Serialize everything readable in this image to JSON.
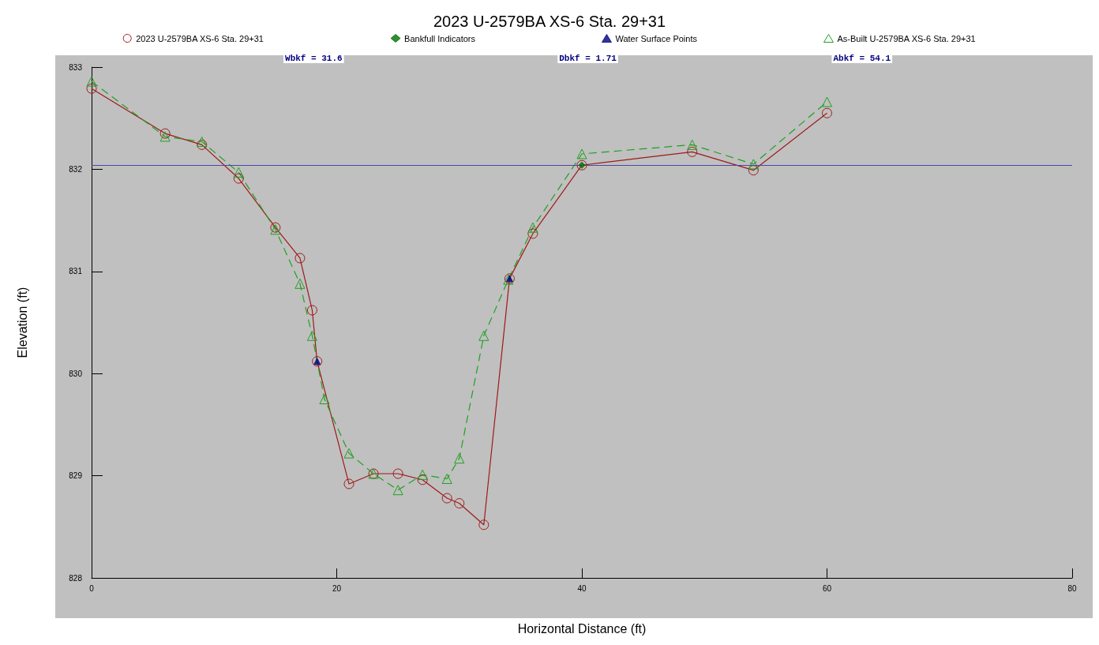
{
  "chart_data": {
    "type": "line",
    "title": "2023 U-2579BA XS-6 Sta. 29+31",
    "xlabel": "Horizontal Distance (ft)",
    "ylabel": "Elevation (ft)",
    "xlim": [
      0,
      80
    ],
    "xticks": [
      0,
      20,
      40,
      60,
      80
    ],
    "ylim": [
      828,
      833
    ],
    "yticks": [
      828,
      829,
      830,
      831,
      832,
      833
    ],
    "grid": false,
    "legend": "top",
    "annotations": [
      "Wbkf = 31.6",
      "Dbkf = 1.71",
      "Abkf = 54.1"
    ],
    "ref_lines": [
      {
        "axis": "y",
        "value": 832.04,
        "color": "#4848a8"
      }
    ],
    "series": [
      {
        "name": "2023 U-2579BA XS-6 Sta. 29+31",
        "color": "#a01818",
        "marker": "circle",
        "line_style": "solid",
        "x": [
          0,
          6,
          9,
          12,
          15,
          17,
          18,
          18.4,
          21,
          23,
          25,
          27,
          29,
          30,
          32,
          34.1,
          36,
          40,
          49,
          54,
          60
        ],
        "values": [
          832.79,
          832.35,
          832.24,
          831.91,
          831.43,
          831.13,
          830.62,
          830.12,
          828.92,
          829.02,
          829.02,
          828.96,
          828.78,
          828.73,
          828.52,
          830.93,
          831.37,
          832.04,
          832.17,
          831.99,
          832.55
        ]
      },
      {
        "name": "Bankfull Indicators",
        "type": "scatter",
        "color": "#007000",
        "marker": "diamond",
        "x": [
          40
        ],
        "values": [
          832.04
        ]
      },
      {
        "name": "Water Surface Points",
        "type": "scatter",
        "color": "#000080",
        "marker": "triangle",
        "x": [
          18.4,
          34.1
        ],
        "values": [
          830.12,
          830.93
        ]
      },
      {
        "name": "As-Built U-2579BA XS-6 Sta. 29+31",
        "color": "#20a020",
        "marker": "triangle",
        "line_style": "dashed",
        "x": [
          0,
          6,
          9,
          12,
          15,
          17,
          18,
          19,
          21,
          23,
          25,
          27,
          29,
          30,
          32,
          34,
          36,
          40,
          49,
          54,
          60
        ],
        "values": [
          832.86,
          832.32,
          832.27,
          831.97,
          831.41,
          830.88,
          830.37,
          829.75,
          829.22,
          829.02,
          828.86,
          829.01,
          828.97,
          829.17,
          830.37,
          830.92,
          831.43,
          832.15,
          832.24,
          832.05,
          832.66
        ]
      }
    ]
  }
}
